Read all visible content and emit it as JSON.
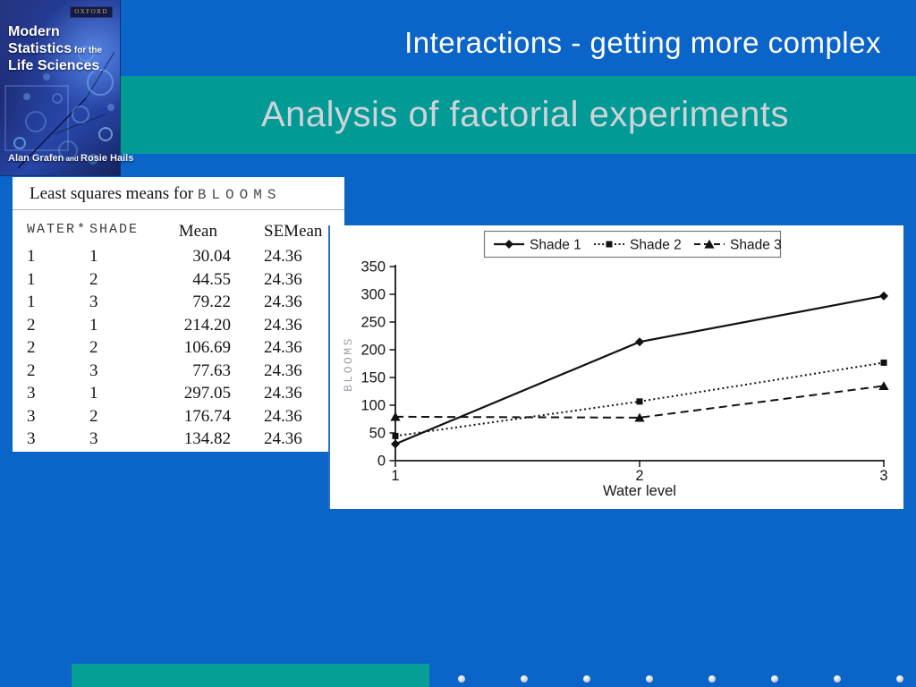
{
  "slide": {
    "title": "Interactions - getting more complex",
    "subtitle": "Analysis of factorial experiments",
    "colors": {
      "background": "#0b64c8",
      "band_teal": "#019a94",
      "footer_teal": "#079e95",
      "title_text": "#ffffff",
      "subtitle_text": "#cdd3d8",
      "dot": "#cfd4db"
    }
  },
  "book_cover": {
    "publisher": "OXFORD",
    "title_line1": "Modern",
    "title_line2_main": "Statistics",
    "title_line2_small": " for the",
    "title_line3": "Life Sciences",
    "author1": "Alan Grafen",
    "conj": " and ",
    "author2": "Rosie Hails"
  },
  "table_panel": {
    "heading_main": "Least squares means for ",
    "heading_mono": "BLOOMS",
    "col_headers": {
      "factor1": "WATER",
      "sep": "*",
      "factor2": "SHADE",
      "mean": "Mean",
      "semean": "SEMean"
    },
    "rows": [
      {
        "water": "1",
        "shade": "1",
        "mean": "30.04",
        "semean": "24.36"
      },
      {
        "water": "1",
        "shade": "2",
        "mean": "44.55",
        "semean": "24.36"
      },
      {
        "water": "1",
        "shade": "3",
        "mean": "79.22",
        "semean": "24.36"
      },
      {
        "water": "2",
        "shade": "1",
        "mean": "214.20",
        "semean": "24.36"
      },
      {
        "water": "2",
        "shade": "2",
        "mean": "106.69",
        "semean": "24.36"
      },
      {
        "water": "2",
        "shade": "3",
        "mean": "77.63",
        "semean": "24.36"
      },
      {
        "water": "3",
        "shade": "1",
        "mean": "297.05",
        "semean": "24.36"
      },
      {
        "water": "3",
        "shade": "2",
        "mean": "176.74",
        "semean": "24.36"
      },
      {
        "water": "3",
        "shade": "3",
        "mean": "134.82",
        "semean": "24.36"
      }
    ]
  },
  "chart_data": {
    "type": "line",
    "x": [
      1,
      2,
      3
    ],
    "xlabel": "Water level",
    "ylabel": "BLOOMS",
    "ylim": [
      0,
      350
    ],
    "ytick_step": 50,
    "xtick_labels": [
      "1",
      "2",
      "3"
    ],
    "grid": false,
    "legend_position": "top",
    "series": [
      {
        "name": "Shade 1",
        "values": [
          30.04,
          214.2,
          297.05
        ],
        "line": "solid",
        "marker": "diamond"
      },
      {
        "name": "Shade 2",
        "values": [
          44.55,
          106.69,
          176.74
        ],
        "line": "dotted",
        "marker": "square"
      },
      {
        "name": "Shade 3",
        "values": [
          79.22,
          77.63,
          134.82
        ],
        "line": "dashed",
        "marker": "triangle"
      }
    ]
  },
  "footer": {
    "dots_count": 8
  }
}
